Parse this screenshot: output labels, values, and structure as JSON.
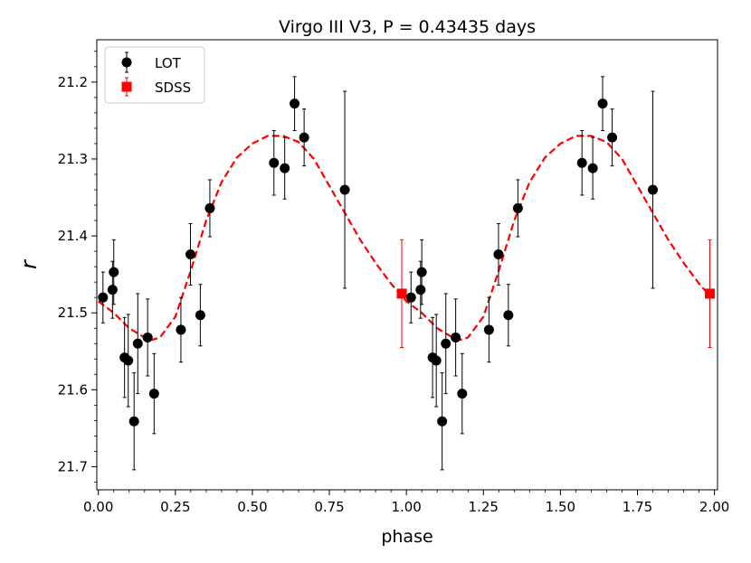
{
  "chart_data": {
    "type": "scatter",
    "title": "Virgo III V3, P = 0.43435 days",
    "xlabel": "phase",
    "ylabel": "r",
    "xlim": [
      -0.005,
      2.01
    ],
    "ylim": [
      21.73,
      21.145
    ],
    "y_inverted": true,
    "xticks": [
      0.0,
      0.25,
      0.5,
      0.75,
      1.0,
      1.25,
      1.5,
      1.75,
      2.0
    ],
    "xtick_labels": [
      "0.00",
      "0.25",
      "0.50",
      "0.75",
      "1.00",
      "1.25",
      "1.50",
      "1.75",
      "2.00"
    ],
    "yticks": [
      21.2,
      21.3,
      21.4,
      21.5,
      21.6,
      21.7
    ],
    "ytick_labels": [
      "21.2",
      "21.3",
      "21.4",
      "21.5",
      "21.6",
      "21.7"
    ],
    "legend": {
      "position": "top-left",
      "entries": [
        "LOT",
        "SDSS"
      ]
    },
    "series": [
      {
        "name": "LOT",
        "color": "#000000",
        "marker": "circle",
        "points": [
          {
            "x": 0.015,
            "y": 21.48,
            "err": 0.033
          },
          {
            "x": 0.046,
            "y": 21.47,
            "err": 0.037
          },
          {
            "x": 0.05,
            "y": 21.447,
            "err": 0.042
          },
          {
            "x": 0.085,
            "y": 21.558,
            "err": 0.052
          },
          {
            "x": 0.097,
            "y": 21.562,
            "err": 0.06
          },
          {
            "x": 0.116,
            "y": 21.641,
            "err": 0.063
          },
          {
            "x": 0.128,
            "y": 21.54,
            "err": 0.065
          },
          {
            "x": 0.16,
            "y": 21.532,
            "err": 0.05
          },
          {
            "x": 0.181,
            "y": 21.605,
            "err": 0.052
          },
          {
            "x": 0.268,
            "y": 21.522,
            "err": 0.042
          },
          {
            "x": 0.299,
            "y": 21.424,
            "err": 0.04
          },
          {
            "x": 0.331,
            "y": 21.503,
            "err": 0.04
          },
          {
            "x": 0.362,
            "y": 21.364,
            "err": 0.037
          },
          {
            "x": 0.57,
            "y": 21.305,
            "err": 0.042
          },
          {
            "x": 0.605,
            "y": 21.312,
            "err": 0.04
          },
          {
            "x": 0.637,
            "y": 21.228,
            "err": 0.035
          },
          {
            "x": 0.668,
            "y": 21.272,
            "err": 0.037
          },
          {
            "x": 0.8,
            "y": 21.34,
            "err": 0.128
          },
          {
            "x": 1.015,
            "y": 21.48,
            "err": 0.033
          },
          {
            "x": 1.046,
            "y": 21.47,
            "err": 0.037
          },
          {
            "x": 1.05,
            "y": 21.447,
            "err": 0.042
          },
          {
            "x": 1.085,
            "y": 21.558,
            "err": 0.052
          },
          {
            "x": 1.097,
            "y": 21.562,
            "err": 0.06
          },
          {
            "x": 1.116,
            "y": 21.641,
            "err": 0.063
          },
          {
            "x": 1.128,
            "y": 21.54,
            "err": 0.065
          },
          {
            "x": 1.16,
            "y": 21.532,
            "err": 0.05
          },
          {
            "x": 1.181,
            "y": 21.605,
            "err": 0.052
          },
          {
            "x": 1.268,
            "y": 21.522,
            "err": 0.042
          },
          {
            "x": 1.299,
            "y": 21.424,
            "err": 0.04
          },
          {
            "x": 1.331,
            "y": 21.503,
            "err": 0.04
          },
          {
            "x": 1.362,
            "y": 21.364,
            "err": 0.037
          },
          {
            "x": 1.57,
            "y": 21.305,
            "err": 0.042
          },
          {
            "x": 1.605,
            "y": 21.312,
            "err": 0.04
          },
          {
            "x": 1.637,
            "y": 21.228,
            "err": 0.035
          },
          {
            "x": 1.668,
            "y": 21.272,
            "err": 0.037
          },
          {
            "x": 1.8,
            "y": 21.34,
            "err": 0.128
          }
        ]
      },
      {
        "name": "SDSS",
        "color": "#ff0000",
        "marker": "square",
        "points": [
          {
            "x": 0.985,
            "y": 21.475,
            "err": 0.07
          },
          {
            "x": 1.985,
            "y": 21.475,
            "err": 0.07
          }
        ]
      }
    ],
    "fit_curve": {
      "style": "dashed",
      "color": "#ff0000",
      "points": [
        [
          0.0,
          21.485
        ],
        [
          0.05,
          21.5
        ],
        [
          0.1,
          21.52
        ],
        [
          0.15,
          21.532
        ],
        [
          0.175,
          21.535
        ],
        [
          0.2,
          21.532
        ],
        [
          0.25,
          21.505
        ],
        [
          0.3,
          21.445
        ],
        [
          0.35,
          21.38
        ],
        [
          0.4,
          21.33
        ],
        [
          0.45,
          21.298
        ],
        [
          0.5,
          21.28
        ],
        [
          0.55,
          21.27
        ],
        [
          0.6,
          21.27
        ],
        [
          0.65,
          21.278
        ],
        [
          0.7,
          21.3
        ],
        [
          0.75,
          21.335
        ],
        [
          0.8,
          21.37
        ],
        [
          0.85,
          21.405
        ],
        [
          0.9,
          21.435
        ],
        [
          0.95,
          21.462
        ],
        [
          1.0,
          21.485
        ],
        [
          1.05,
          21.5
        ],
        [
          1.1,
          21.52
        ],
        [
          1.15,
          21.532
        ],
        [
          1.175,
          21.535
        ],
        [
          1.2,
          21.532
        ],
        [
          1.25,
          21.505
        ],
        [
          1.3,
          21.445
        ],
        [
          1.35,
          21.38
        ],
        [
          1.4,
          21.33
        ],
        [
          1.45,
          21.298
        ],
        [
          1.5,
          21.28
        ],
        [
          1.55,
          21.27
        ],
        [
          1.6,
          21.27
        ],
        [
          1.65,
          21.278
        ],
        [
          1.7,
          21.3
        ],
        [
          1.75,
          21.335
        ],
        [
          1.8,
          21.37
        ],
        [
          1.85,
          21.405
        ],
        [
          1.9,
          21.435
        ],
        [
          1.95,
          21.462
        ],
        [
          1.99,
          21.48
        ]
      ]
    }
  }
}
